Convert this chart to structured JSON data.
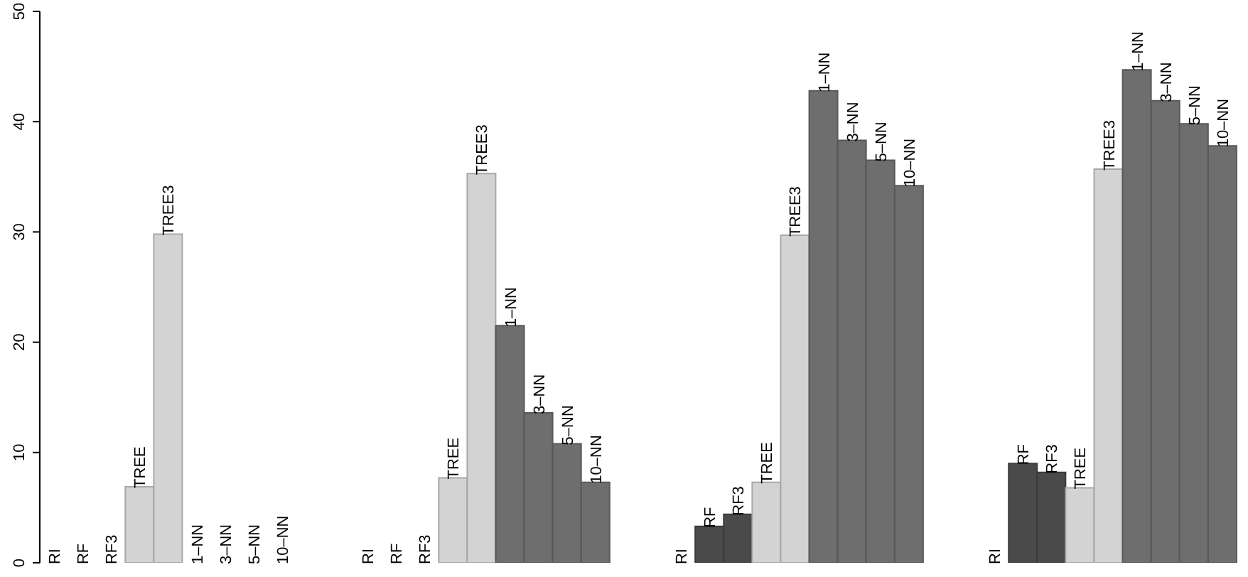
{
  "chart_data": {
    "type": "bar",
    "categories": [
      "RI",
      "RF",
      "RF3",
      "TREE",
      "TREE3",
      "1–NN",
      "3–NN",
      "5–NN",
      "10–NN",
      null,
      null,
      "RI",
      "RF",
      "RF3",
      "TREE",
      "TREE3",
      "1–NN",
      "3–NN",
      "5–NN",
      "10–NN",
      null,
      null,
      "RI",
      "RF",
      "RF3",
      "TREE",
      "TREE3",
      "1–NN",
      "3–NN",
      "5–NN",
      "10–NN",
      null,
      null,
      "RI",
      "RF",
      "RF3",
      "TREE",
      "TREE3",
      "1–NN",
      "3–NN",
      "5–NN",
      "10–NN"
    ],
    "values": [
      0,
      0,
      0,
      6.9,
      29.8,
      0,
      0,
      0,
      0,
      null,
      null,
      0,
      0,
      0,
      7.7,
      35.3,
      21.5,
      13.6,
      10.8,
      7.3,
      null,
      null,
      0,
      3.3,
      4.4,
      7.3,
      29.7,
      42.8,
      38.3,
      36.5,
      34.2,
      null,
      null,
      0,
      9.0,
      8.2,
      6.8,
      35.7,
      44.7,
      41.9,
      39.8,
      37.8
    ],
    "colors": [
      "#4a4a4a",
      "#4a4a4a",
      "#4a4a4a",
      "#d3d3d3",
      "#d3d3d3",
      "#6e6e6e",
      "#6e6e6e",
      "#6e6e6e",
      "#6e6e6e",
      null,
      null,
      "#4a4a4a",
      "#4a4a4a",
      "#4a4a4a",
      "#d3d3d3",
      "#d3d3d3",
      "#6e6e6e",
      "#6e6e6e",
      "#6e6e6e",
      "#6e6e6e",
      null,
      null,
      "#4a4a4a",
      "#4a4a4a",
      "#4a4a4a",
      "#d3d3d3",
      "#d3d3d3",
      "#6e6e6e",
      "#6e6e6e",
      "#6e6e6e",
      "#6e6e6e",
      null,
      null,
      "#4a4a4a",
      "#4a4a4a",
      "#4a4a4a",
      "#d3d3d3",
      "#d3d3d3",
      "#6e6e6e",
      "#6e6e6e",
      "#6e6e6e",
      "#6e6e6e"
    ],
    "ylim": [
      0,
      50
    ],
    "yticks": [
      0,
      10,
      20,
      30,
      40,
      50
    ],
    "grid": false,
    "legend": false
  }
}
